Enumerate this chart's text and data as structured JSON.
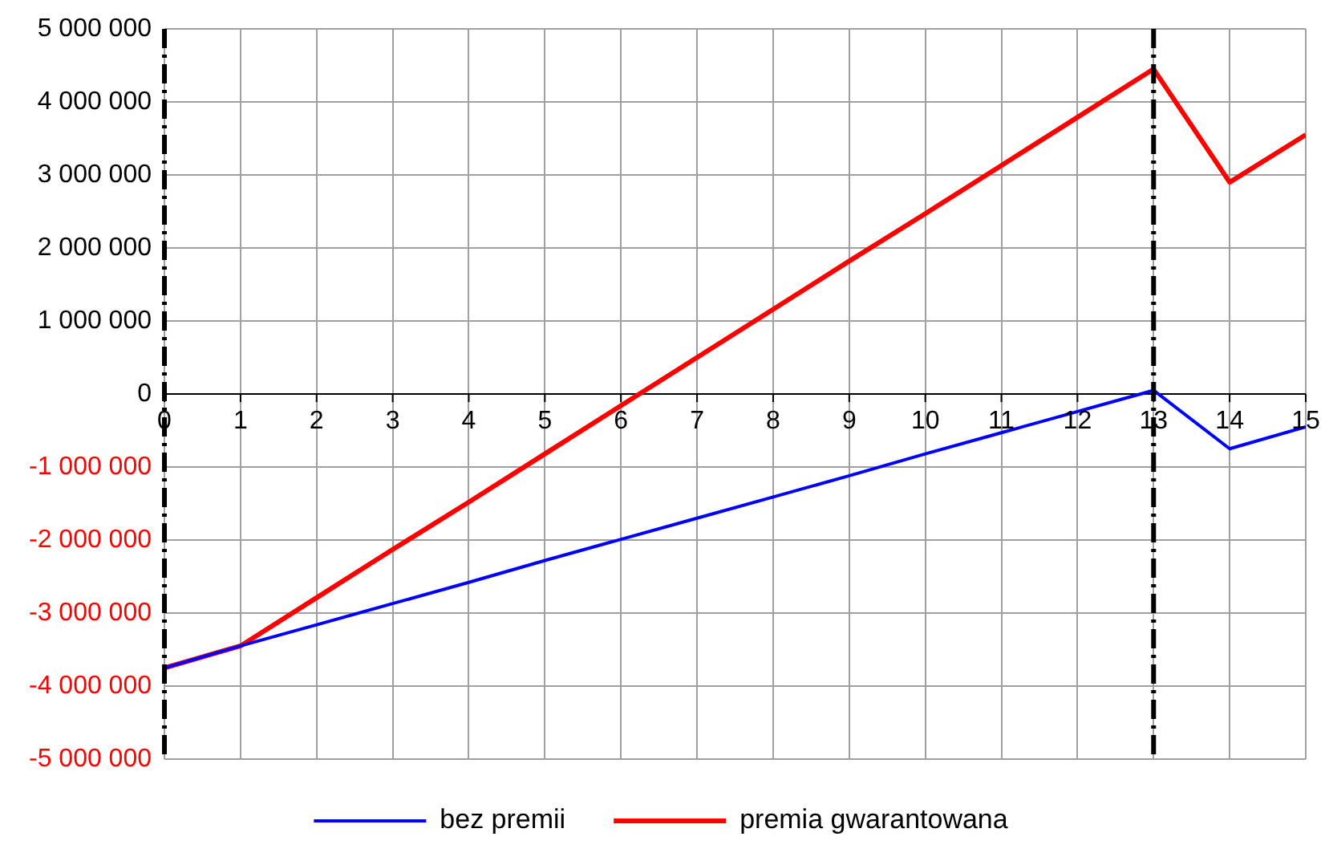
{
  "chart_data": {
    "type": "line",
    "x": [
      0,
      1,
      2,
      3,
      4,
      5,
      6,
      7,
      8,
      9,
      10,
      11,
      12,
      13,
      14,
      15
    ],
    "series": [
      {
        "name": "bez premii",
        "color": "#0000ff",
        "values": [
          -3750000,
          -3450000,
          -3160000,
          -2870000,
          -2580000,
          -2280000,
          -1990000,
          -1700000,
          -1410000,
          -1120000,
          -820000,
          -530000,
          -240000,
          50000,
          -750000,
          -450000
        ]
      },
      {
        "name": "premia gwarantowana",
        "color": "#ff0000",
        "values": [
          -3750000,
          -3450000,
          -2790000,
          -2130000,
          -1480000,
          -820000,
          -160000,
          500000,
          1160000,
          1820000,
          2470000,
          3130000,
          3790000,
          4450000,
          2900000,
          3550000
        ]
      }
    ],
    "xlim": [
      0,
      15
    ],
    "xticks": [
      0,
      1,
      2,
      3,
      4,
      5,
      6,
      7,
      8,
      9,
      10,
      11,
      12,
      13,
      14,
      15
    ],
    "ylim": [
      -5000000,
      5000000
    ],
    "yticks": [
      {
        "value": -5000000,
        "label": "-5 000 000"
      },
      {
        "value": -4000000,
        "label": "-4 000 000"
      },
      {
        "value": -3000000,
        "label": "-3 000 000"
      },
      {
        "value": -2000000,
        "label": "-2 000 000"
      },
      {
        "value": -1000000,
        "label": "-1 000 000"
      },
      0,
      {
        "value": 1000000,
        "label": "1 000 000"
      },
      {
        "value": 2000000,
        "label": "2 000 000"
      },
      {
        "value": 3000000,
        "label": "3 000 000"
      },
      {
        "value": 4000000,
        "label": "4 000 000"
      },
      {
        "value": 5000000,
        "label": "5 000 000"
      }
    ],
    "ref_lines": [
      {
        "axis": "x",
        "value": 0,
        "color": "#000000",
        "line_style": "dashdot"
      },
      {
        "axis": "x",
        "value": 13,
        "color": "#000000",
        "line_style": "dashdot"
      }
    ],
    "grid": true,
    "legend": "bottom",
    "marker": "none",
    "line_style": "solid"
  }
}
